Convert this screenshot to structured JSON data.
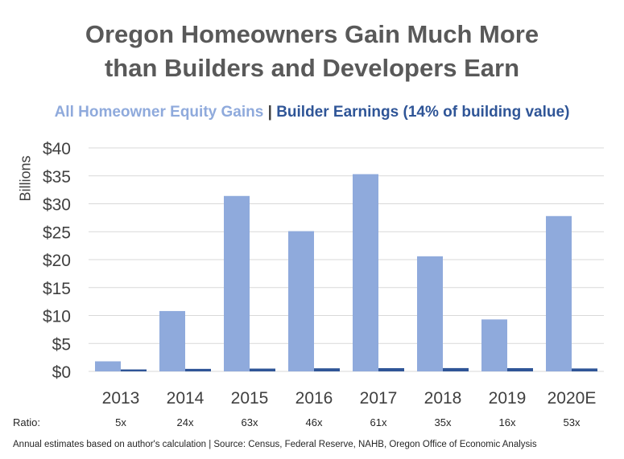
{
  "title_line1": "Oregon Homeowners Gain Much More",
  "title_line2": "than Builders and Developers Earn",
  "legend": {
    "series_a": "All Homeowner Equity Gains",
    "separator": "|",
    "series_b": "Builder Earnings (14% of building value)"
  },
  "ylabel": "Billions",
  "ratio": {
    "label": "Ratio:",
    "values": [
      "5x",
      "24x",
      "63x",
      "46x",
      "61x",
      "35x",
      "16x",
      "53x"
    ]
  },
  "footnote": "Annual estimates based on author's calculation  |  Source: Census, Federal Reserve, NAHB, Oregon Office of Economic Analysis",
  "colors": {
    "series_a": "#8faadc",
    "series_b": "#2f5597",
    "grid": "#d9d9d9",
    "axis_text": "#404040"
  },
  "chart_data": {
    "type": "bar",
    "title": "Oregon Homeowners Gain Much More than Builders and Developers Earn",
    "xlabel": "",
    "ylabel": "Billions",
    "categories": [
      "2013",
      "2014",
      "2015",
      "2016",
      "2017",
      "2018",
      "2019",
      "2020E"
    ],
    "series": [
      {
        "name": "All Homeowner Equity Gains",
        "values": [
          1.8,
          10.8,
          31.4,
          25.1,
          35.3,
          20.6,
          9.3,
          27.8
        ]
      },
      {
        "name": "Builder Earnings (14% of building value)",
        "values": [
          0.35,
          0.45,
          0.5,
          0.55,
          0.58,
          0.59,
          0.58,
          0.52
        ]
      }
    ],
    "ylim": [
      0,
      40
    ],
    "yticks": [
      "$0",
      "$5",
      "$10",
      "$15",
      "$20",
      "$25",
      "$30",
      "$35",
      "$40"
    ],
    "grid": true,
    "legend_position": "top"
  }
}
